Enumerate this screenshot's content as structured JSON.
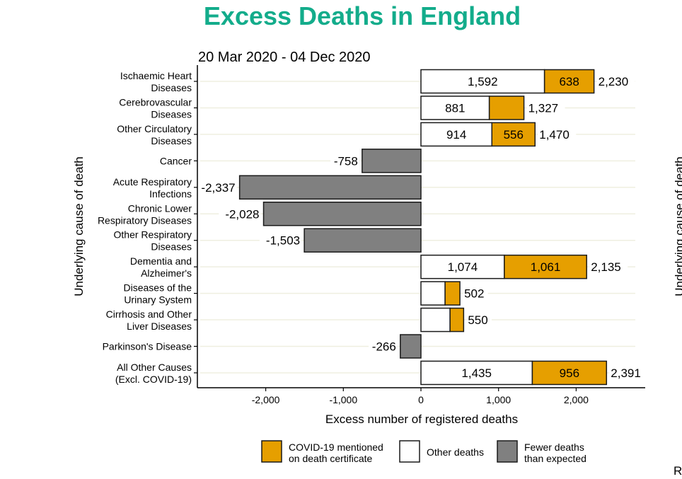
{
  "chart_data": {
    "type": "bar",
    "orientation": "horizontal",
    "stacked": true,
    "title": "Excess Deaths in England",
    "subtitle": "20 Mar 2020 - 04 Dec 2020",
    "xlabel": "Excess number of registered deaths",
    "ylabel": "Underlying cause of death",
    "xlim": [
      -2850,
      2900
    ],
    "xticks": [
      -2000,
      -1000,
      0,
      1000,
      2000
    ],
    "xtick_labels": [
      "-2,000",
      "-1,000",
      "0",
      "1,000",
      "2,000"
    ],
    "grid": "horizontal-minor",
    "colors": {
      "covid": "#e69f00",
      "other": "#ffffff",
      "fewer": "#808080",
      "title": "#13ac8b",
      "grid": "#efefe0"
    },
    "categories": [
      [
        "Ischaemic Heart",
        "Diseases"
      ],
      [
        "Cerebrovascular",
        "Diseases"
      ],
      [
        "Other Circulatory",
        "Diseases"
      ],
      [
        "Cancer"
      ],
      [
        "Acute Respiratory",
        "Infections"
      ],
      [
        "Chronic Lower",
        "Respiratory Diseases"
      ],
      [
        "Other Respiratory",
        "Diseases"
      ],
      [
        "Dementia and",
        "Alzheimer's"
      ],
      [
        "Diseases of the",
        "Urinary System"
      ],
      [
        "Cirrhosis and Other",
        "Liver Diseases"
      ],
      [
        "Parkinson's Disease"
      ],
      [
        "All Other Causes",
        "(Excl. COVID-19)"
      ]
    ],
    "series": [
      {
        "name": "Other deaths",
        "key": "other",
        "values": [
          1592,
          881,
          914,
          0,
          0,
          0,
          0,
          1074,
          311,
          375,
          0,
          1435
        ],
        "labels": [
          "1,592",
          "881",
          "914",
          "",
          "",
          "",
          "",
          "1,074",
          "",
          "",
          "",
          "1,435"
        ]
      },
      {
        "name": "COVID-19 mentioned on death certificate",
        "key": "covid",
        "values": [
          638,
          446,
          556,
          0,
          0,
          0,
          0,
          1061,
          191,
          175,
          0,
          956
        ],
        "labels": [
          "638",
          "",
          "556",
          "",
          "",
          "",
          "",
          "1,061",
          "",
          "",
          "",
          "956"
        ]
      },
      {
        "name": "Fewer deaths than expected",
        "key": "fewer",
        "values": [
          0,
          0,
          0,
          -758,
          -2337,
          -2028,
          -1503,
          0,
          0,
          0,
          -266,
          0
        ],
        "labels": [
          "",
          "",
          "",
          "-758",
          "-2,337",
          "-2,028",
          "-1,503",
          "",
          "",
          "",
          "-266",
          ""
        ]
      }
    ],
    "totals": [
      2230,
      1327,
      1470,
      -758,
      -2337,
      -2028,
      -1503,
      2135,
      502,
      550,
      -266,
      2391
    ],
    "total_labels": [
      "2,230",
      "1,327",
      "1,470",
      "-758",
      "-2,337",
      "-2,028",
      "-1,503",
      "2,135",
      "502",
      "550",
      "-266",
      "2,391"
    ],
    "legend": {
      "placement": "bottom",
      "items": [
        {
          "key": "covid",
          "lines": [
            "COVID-19 mentioned",
            "on death certificate"
          ]
        },
        {
          "key": "other",
          "lines": [
            "Other deaths"
          ]
        },
        {
          "key": "fewer",
          "lines": [
            "Fewer deaths",
            "than expected"
          ]
        }
      ]
    }
  },
  "clipped_right": {
    "ylabel_fragment": "Underlying cause of death",
    "letter": "R"
  }
}
